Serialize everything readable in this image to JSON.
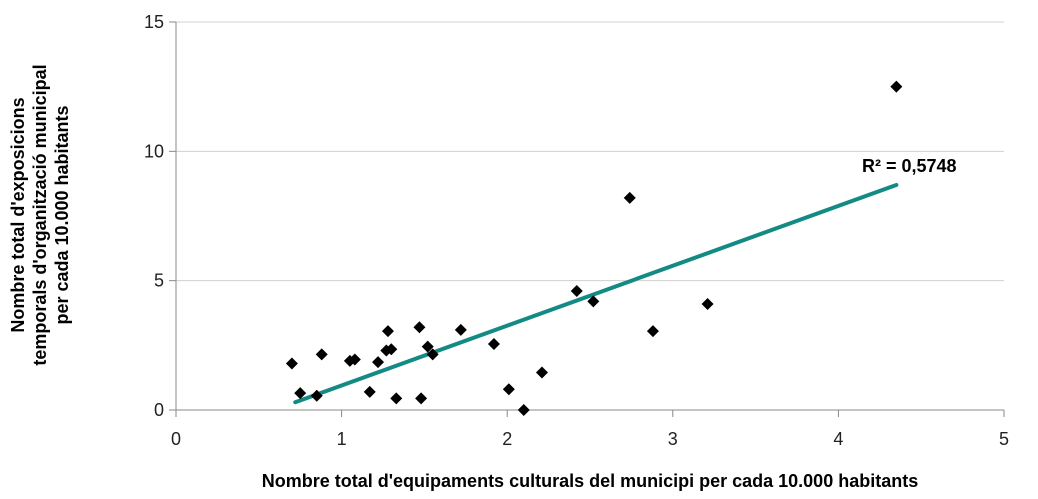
{
  "chart_data": {
    "type": "scatter",
    "xlabel": "Nombre total d'equipaments culturals del municipi per cada 10.000 habitants",
    "ylabel_lines": [
      "Nombre total d'exposicions",
      "temporals d'organització municipal",
      "per cada 10.000 habitants"
    ],
    "xlim": [
      0,
      5
    ],
    "ylim": [
      0,
      15
    ],
    "x_ticks": [
      "0",
      "1",
      "2",
      "3",
      "4",
      "5"
    ],
    "y_ticks": [
      "0",
      "5",
      "10",
      "15"
    ],
    "grid": "horizontal",
    "marker": "diamond",
    "marker_color": "#000000",
    "trendline_color": "#138a84",
    "r2_label": "R² = 0,5748",
    "trendline": {
      "x": [
        0.72,
        4.35
      ],
      "y": [
        0.3,
        8.7
      ]
    },
    "points": [
      {
        "x": 0.7,
        "y": 1.8
      },
      {
        "x": 0.75,
        "y": 0.65
      },
      {
        "x": 0.85,
        "y": 0.55
      },
      {
        "x": 0.88,
        "y": 2.15
      },
      {
        "x": 1.05,
        "y": 1.9
      },
      {
        "x": 1.08,
        "y": 1.95
      },
      {
        "x": 1.17,
        "y": 0.7
      },
      {
        "x": 1.22,
        "y": 1.85
      },
      {
        "x": 1.27,
        "y": 2.3
      },
      {
        "x": 1.28,
        "y": 3.05
      },
      {
        "x": 1.3,
        "y": 2.35
      },
      {
        "x": 1.33,
        "y": 0.45
      },
      {
        "x": 1.47,
        "y": 3.2
      },
      {
        "x": 1.48,
        "y": 0.45
      },
      {
        "x": 1.52,
        "y": 2.45
      },
      {
        "x": 1.55,
        "y": 2.15
      },
      {
        "x": 1.72,
        "y": 3.1
      },
      {
        "x": 1.92,
        "y": 2.55
      },
      {
        "x": 2.01,
        "y": 0.8
      },
      {
        "x": 2.1,
        "y": 0.0
      },
      {
        "x": 2.21,
        "y": 1.45
      },
      {
        "x": 2.42,
        "y": 4.6
      },
      {
        "x": 2.52,
        "y": 4.2
      },
      {
        "x": 2.74,
        "y": 8.2
      },
      {
        "x": 2.88,
        "y": 3.05
      },
      {
        "x": 3.21,
        "y": 4.1
      },
      {
        "x": 4.35,
        "y": 12.5
      }
    ]
  }
}
